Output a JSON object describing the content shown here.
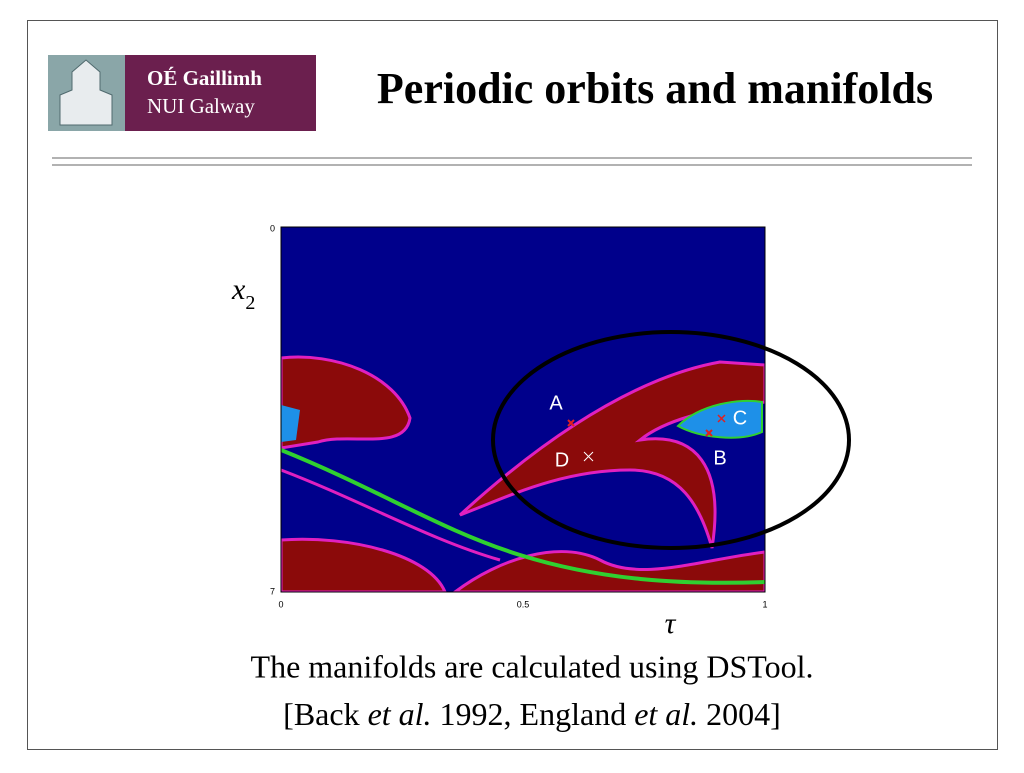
{
  "header": {
    "logo": {
      "line1": "OÉ Gaillimh",
      "line2": "NUI Galway"
    },
    "title": "Periodic orbits and manifolds"
  },
  "figure": {
    "y_label": {
      "main": "x",
      "sub": "2"
    },
    "x_label": "τ",
    "y_ticks": [
      "0",
      "7"
    ],
    "x_ticks": [
      "0",
      "0.5",
      "1"
    ],
    "points": [
      "A",
      "B",
      "C",
      "D"
    ]
  },
  "caption": {
    "line1": "The manifolds are calculated using DSTool.",
    "line2": [
      "[Back ",
      "et al.",
      " 1992, England ",
      "et al.",
      " 2004]"
    ]
  }
}
